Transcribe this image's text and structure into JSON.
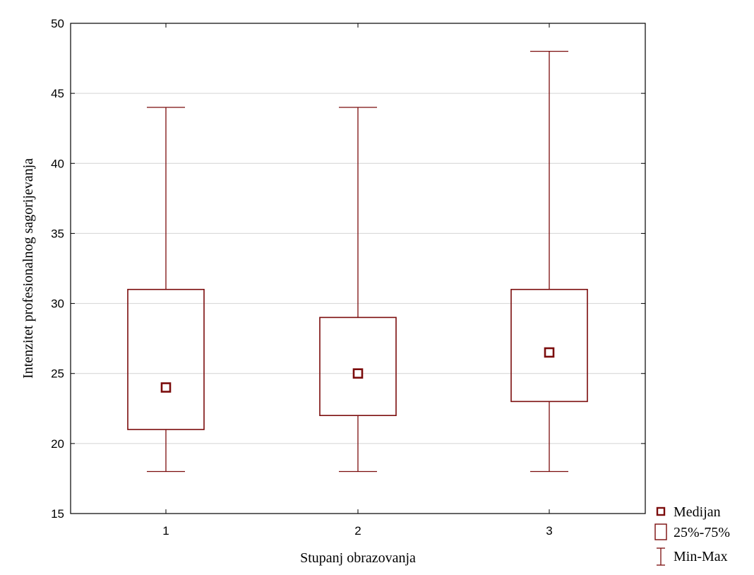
{
  "chart_data": {
    "type": "box",
    "title": "",
    "xlabel": "Stupanj obrazovanja",
    "ylabel": "Intenzitet profesionalnog sagorijevanja",
    "categories": [
      "1",
      "2",
      "3"
    ],
    "ylim": [
      15,
      50
    ],
    "yticks": [
      15,
      20,
      25,
      30,
      35,
      40,
      45,
      50
    ],
    "grid": "horizontal",
    "legend_position": "bottom-right, outside plot",
    "color": "#7b0c0c",
    "boxes": [
      {
        "category": "1",
        "min": 18,
        "q1": 21,
        "median": 24,
        "q3": 31,
        "max": 44
      },
      {
        "category": "2",
        "min": 18,
        "q1": 22,
        "median": 25,
        "q3": 29,
        "max": 44
      },
      {
        "category": "3",
        "min": 18,
        "q1": 23,
        "median": 26.5,
        "q3": 31,
        "max": 48
      }
    ],
    "legend": [
      {
        "label": "Medijan",
        "symbol": "median-marker"
      },
      {
        "label": "25%-75%",
        "symbol": "box"
      },
      {
        "label": "Min-Max",
        "symbol": "whisker"
      }
    ]
  }
}
